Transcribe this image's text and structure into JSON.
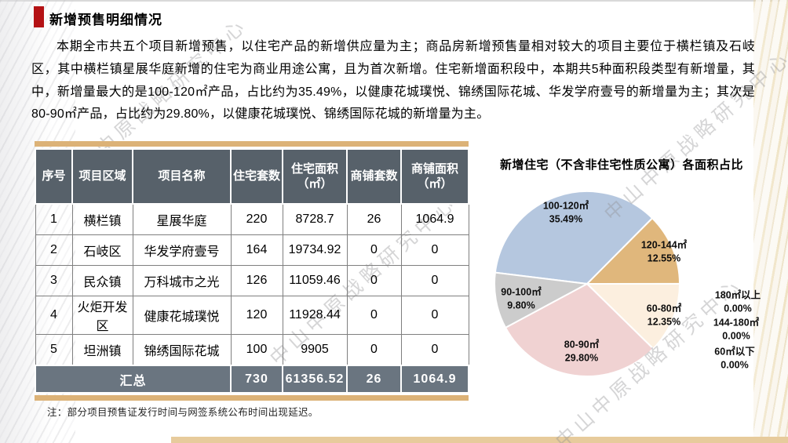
{
  "page": {
    "section_title": "新增预售明细情况",
    "paragraph": "本期全市共五个项目新增预售，以住宅产品的新增供应量为主；商品房新增预售量相对较大的项目主要位于横栏镇及石岐区，其中横栏镇星展华庭新增的住宅为商业用途公寓，且为首次新增。住宅新增面积段中，本期共5种面积段类型有新增量，其中，新增量最大的是100-120㎡产品，占比约为35.49%，以健康花城璞悦、锦绣国际花城、华发学府壹号的新增量为主；其次是80-90㎡产品，占比约为29.80%，以健康花城璞悦、锦绣国际花城的新增量为主。",
    "note": "注：部分项目预售证发行时间与网签系统公布时间出现延迟。",
    "watermark": "中山中原战略研究中心"
  },
  "table": {
    "headers": [
      "序号",
      "项目区域",
      "项目名称",
      "住宅套数",
      "住宅面积\n（㎡）",
      "商铺套数",
      "商铺面积\n（㎡）"
    ],
    "rows": [
      [
        "1",
        "横栏镇",
        "星展华庭",
        "220",
        "8728.7",
        "26",
        "1064.9"
      ],
      [
        "2",
        "石岐区",
        "华发学府壹号",
        "164",
        "19734.92",
        "0",
        "0"
      ],
      [
        "3",
        "民众镇",
        "万科城市之光",
        "126",
        "11059.46",
        "0",
        "0"
      ],
      [
        "4",
        "火炬开发区",
        "健康花城璞悦",
        "120",
        "11928.44",
        "0",
        "0"
      ],
      [
        "5",
        "坦洲镇",
        "锦绣国际花城",
        "100",
        "9905",
        "0",
        "0"
      ]
    ],
    "summary": {
      "label": "汇总",
      "values": [
        "730",
        "61356.52",
        "26",
        "1064.9"
      ]
    }
  },
  "chart_data": {
    "type": "pie",
    "title": "新增住宅（不含非住宅性质公寓）各面积占比",
    "legend": "none",
    "label_style": "category-and-percent",
    "start_angle_deg": -83,
    "slices": [
      {
        "label": "100-120㎡",
        "pct": 35.49,
        "color": "#b5c7df"
      },
      {
        "label": "120-144㎡",
        "pct": 12.55,
        "color": "#e0b77c"
      },
      {
        "label": "60-80㎡",
        "pct": 12.35,
        "color": "#fcefdf"
      },
      {
        "label": "80-90㎡",
        "pct": 29.8,
        "color": "#f0d2d2"
      },
      {
        "label": "90-100㎡",
        "pct": 9.8,
        "color": "#cccccc"
      }
    ],
    "zero_slices": [
      {
        "label": "180㎡以上",
        "pct": 0.0
      },
      {
        "label": "144-180㎡",
        "pct": 0.0
      },
      {
        "label": "60㎡以下",
        "pct": 0.0
      }
    ]
  },
  "colors": {
    "accent_red": "#b41114",
    "table_header_bg": "#57616a",
    "table_summary_bg": "#6a7580",
    "tan_bar": "#dcb277",
    "bottom_bar": "#e7cb9c",
    "table_border": "#7f7f7f"
  }
}
